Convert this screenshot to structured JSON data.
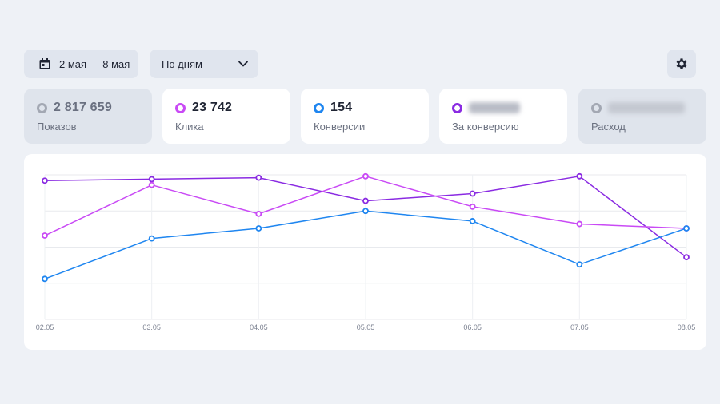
{
  "toolbar": {
    "date_range": "2 мая — 8 мая",
    "period": "По дням",
    "icons": {
      "calendar": "calendar-icon",
      "chevron": "chevron-down-icon",
      "settings": "gear-icon"
    }
  },
  "metrics": [
    {
      "value": "2 817 659",
      "label": "Показов",
      "active": false,
      "color": "#a3a8b3"
    },
    {
      "value": "23 742",
      "label": "Клика",
      "active": true,
      "color": "#c94af5"
    },
    {
      "value": "154",
      "label": "Конверсии",
      "active": true,
      "color": "#1f86f0"
    },
    {
      "value": "",
      "label": "За конверсию",
      "active": true,
      "color": "#8a2be2",
      "value_obscured": true
    },
    {
      "value": "",
      "label": "Расход",
      "active": false,
      "color": "#a3a8b3",
      "value_obscured": true
    }
  ],
  "chart_data": {
    "type": "line",
    "categories": [
      "02.05",
      "03.05",
      "04.05",
      "05.05",
      "06.05",
      "07.05",
      "08.05"
    ],
    "grid": true,
    "legend": "none",
    "ylim": [
      0,
      100
    ],
    "series": [
      {
        "color": "#8a2be2",
        "values": [
          96,
          97,
          98,
          82,
          87,
          99,
          43
        ]
      },
      {
        "color": "#c94af5",
        "values": [
          58,
          93,
          73,
          99,
          78,
          66,
          63
        ]
      },
      {
        "color": "#1f86f0",
        "values": [
          28,
          56,
          63,
          75,
          68,
          38,
          63
        ]
      }
    ]
  }
}
